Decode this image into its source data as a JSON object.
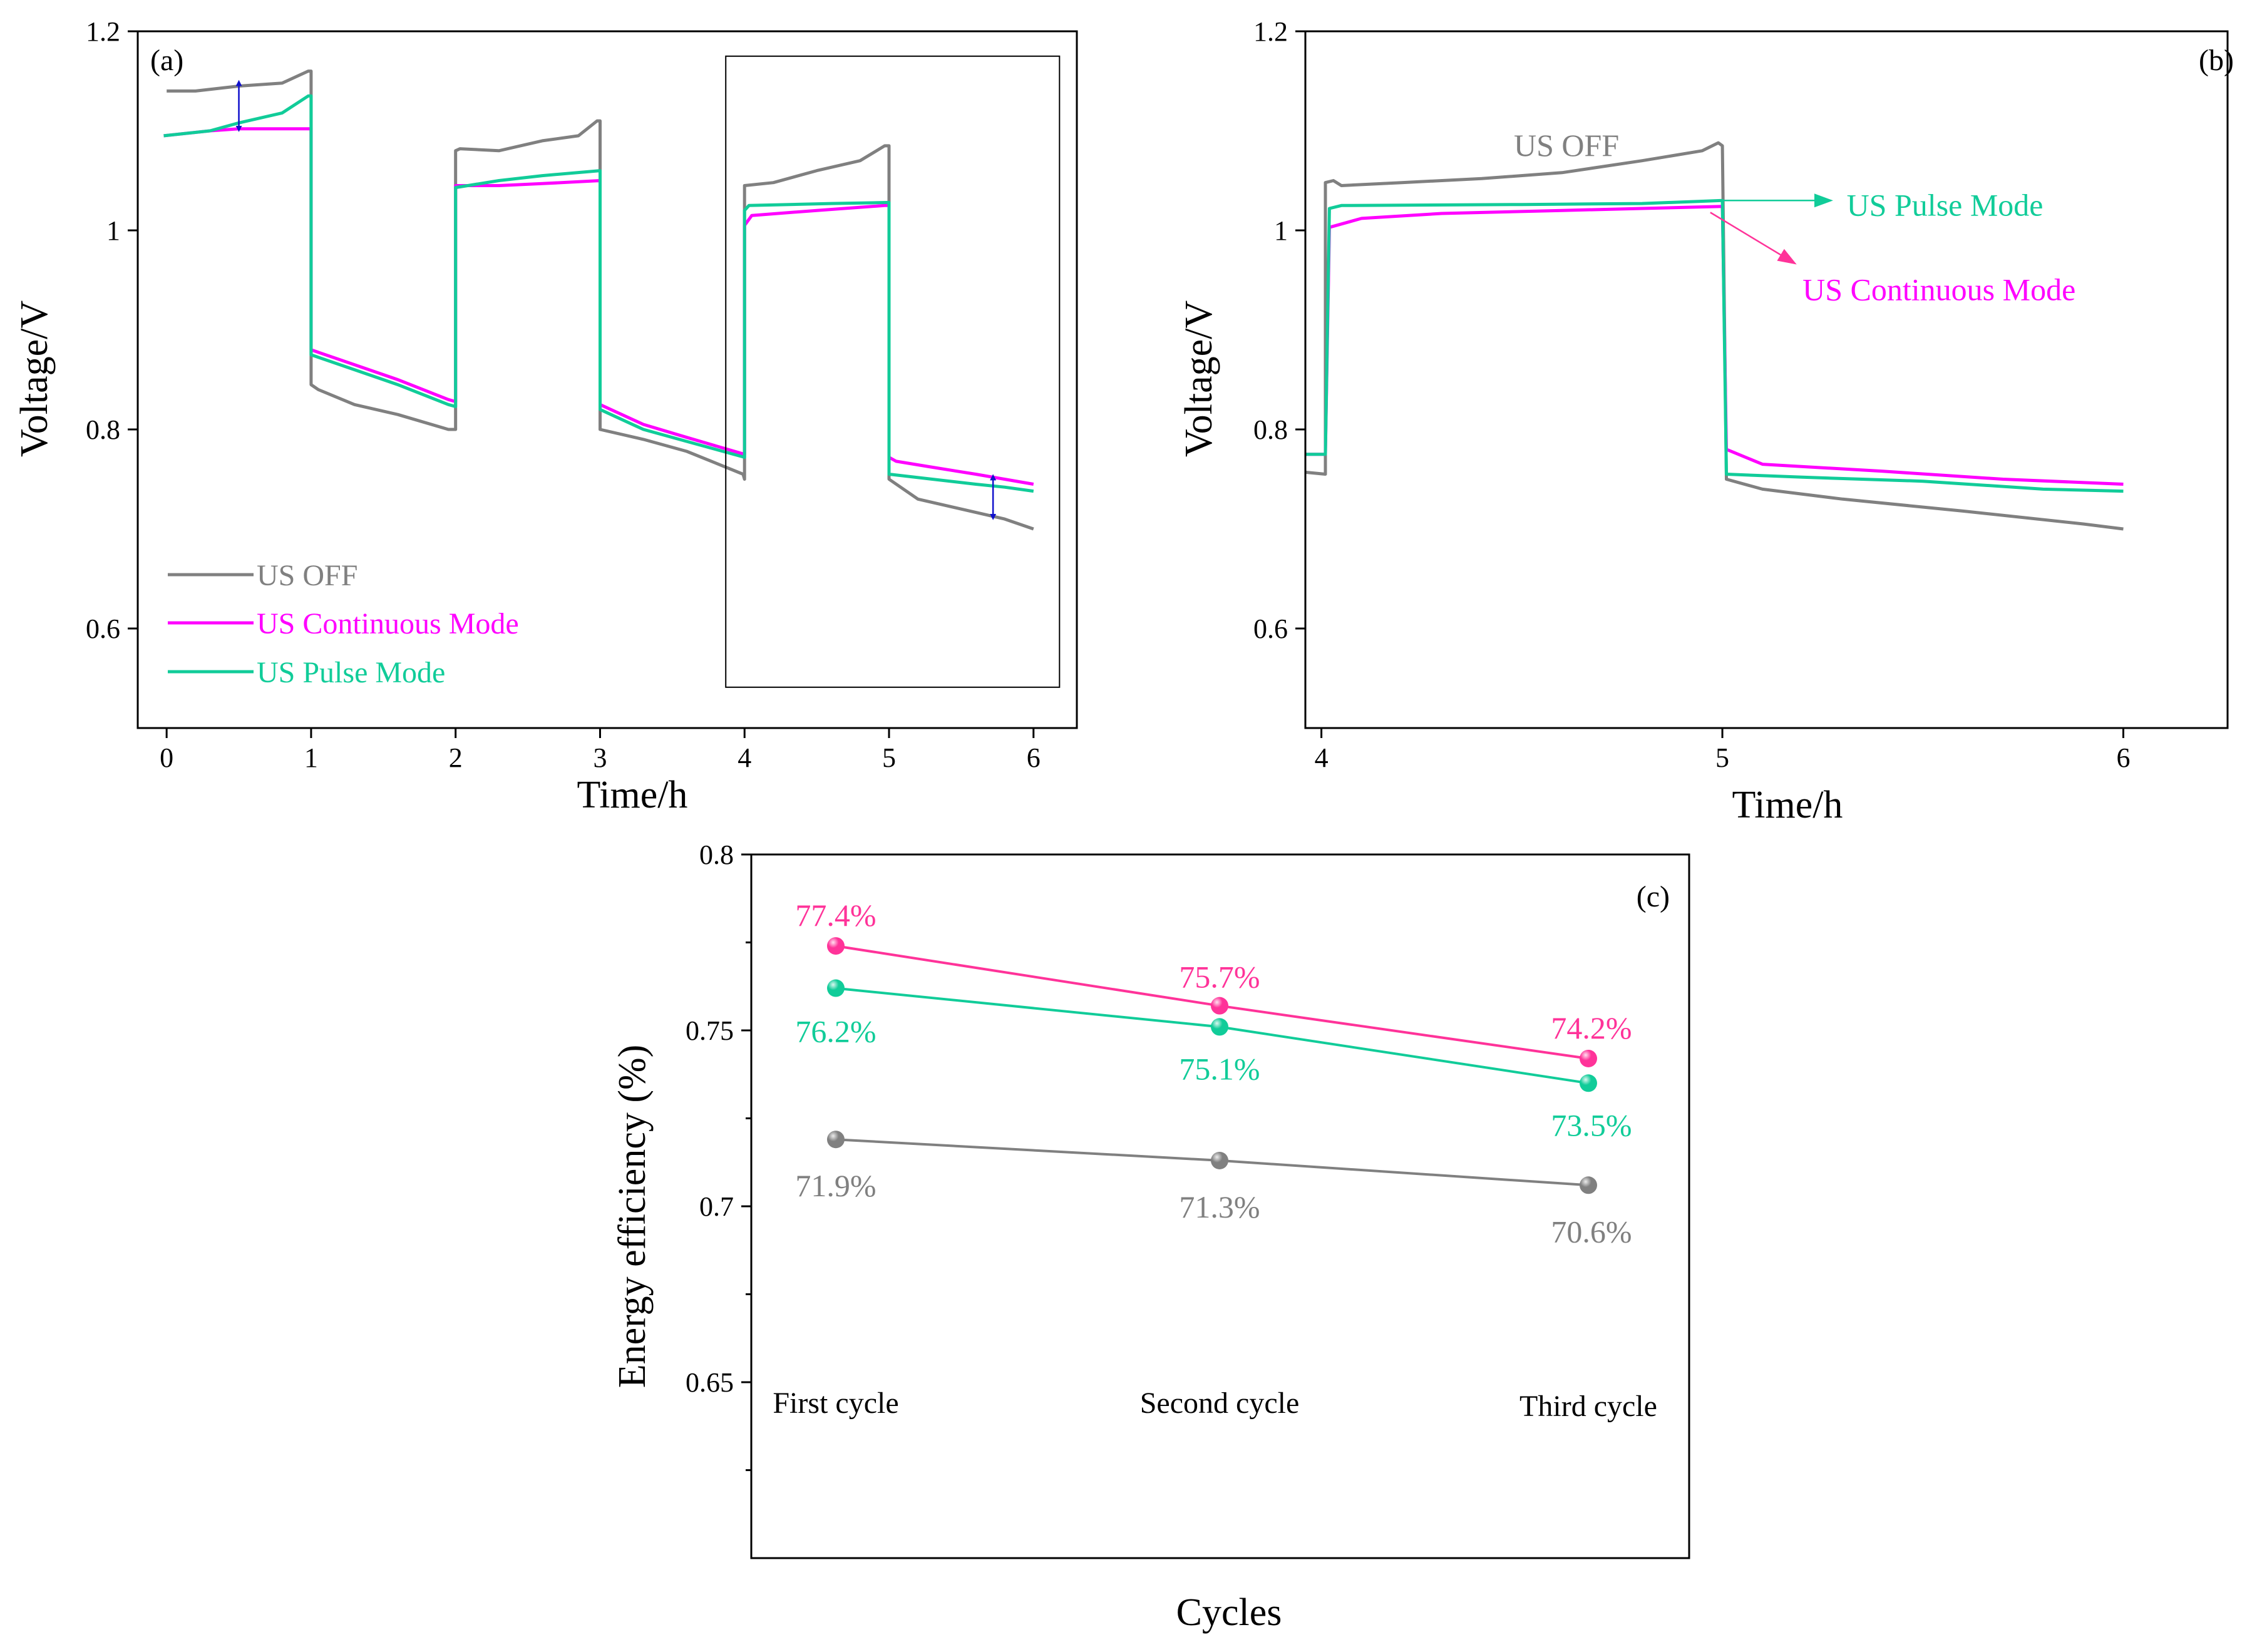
{
  "colors": {
    "us_off": "#808080",
    "continuous": "#ff00ff",
    "pulse": "#11cc99",
    "continuous_c": "#ff3399",
    "arrow": "#1010cc",
    "axis": "#000000"
  },
  "chart_data": [
    {
      "id": "a",
      "panel_label": "(a)",
      "type": "line",
      "xlabel": "Time/h",
      "ylabel": "Voltage/V",
      "xlim": [
        -0.2,
        6.3
      ],
      "ylim": [
        0.5,
        1.2
      ],
      "xticks": [
        0,
        1,
        2,
        3,
        4,
        5,
        6
      ],
      "yticks": [
        0.6,
        0.8,
        1,
        1.2
      ],
      "tick_labels_x": [
        "0",
        "1",
        "2",
        "3",
        "4",
        "5",
        "6"
      ],
      "tick_labels_y": [
        "0.6",
        "0.8",
        "1",
        "1.2"
      ],
      "legend": {
        "position": "bottom-left",
        "entries": [
          "US OFF",
          "US Continuous Mode",
          "US Pulse Mode"
        ]
      },
      "highlight_box": {
        "x": [
          3.87,
          6.18
        ],
        "y": [
          0.541,
          1.175
        ]
      },
      "series": [
        {
          "name": "US OFF",
          "color_key": "us_off",
          "points": [
            [
              0,
              1.14
            ],
            [
              0.2,
              1.14
            ],
            [
              0.5,
              1.145
            ],
            [
              0.8,
              1.148
            ],
            [
              0.98,
              1.16
            ],
            [
              1.0,
              1.16
            ],
            [
              1.0,
              0.845
            ],
            [
              1.05,
              0.84
            ],
            [
              1.3,
              0.825
            ],
            [
              1.6,
              0.815
            ],
            [
              1.95,
              0.8
            ],
            [
              2.0,
              0.8
            ],
            [
              2.0,
              1.08
            ],
            [
              2.03,
              1.082
            ],
            [
              2.3,
              1.08
            ],
            [
              2.6,
              1.09
            ],
            [
              2.85,
              1.095
            ],
            [
              2.98,
              1.11
            ],
            [
              3.0,
              1.11
            ],
            [
              3.0,
              0.8
            ],
            [
              3.3,
              0.79
            ],
            [
              3.6,
              0.778
            ],
            [
              3.99,
              0.755
            ],
            [
              4.0,
              0.75
            ],
            [
              4.0,
              1.045
            ],
            [
              4.2,
              1.048
            ],
            [
              4.5,
              1.06
            ],
            [
              4.8,
              1.07
            ],
            [
              4.97,
              1.085
            ],
            [
              5.0,
              1.085
            ],
            [
              5.0,
              0.75
            ],
            [
              5.2,
              0.73
            ],
            [
              5.5,
              0.72
            ],
            [
              5.8,
              0.71
            ],
            [
              6.0,
              0.7
            ]
          ]
        },
        {
          "name": "US Continuous Mode",
          "color_key": "continuous",
          "points": [
            [
              -0.02,
              1.095
            ],
            [
              0.3,
              1.1
            ],
            [
              0.5,
              1.102
            ],
            [
              0.98,
              1.102
            ],
            [
              1.0,
              1.102
            ],
            [
              1.0,
              0.88
            ],
            [
              1.3,
              0.865
            ],
            [
              1.6,
              0.85
            ],
            [
              1.95,
              0.83
            ],
            [
              2.0,
              0.828
            ],
            [
              2.0,
              1.045
            ],
            [
              2.3,
              1.045
            ],
            [
              2.6,
              1.047
            ],
            [
              3.0,
              1.05
            ],
            [
              3.0,
              0.825
            ],
            [
              3.3,
              0.805
            ],
            [
              3.6,
              0.792
            ],
            [
              4.0,
              0.775
            ],
            [
              4.0,
              1.005
            ],
            [
              4.05,
              1.015
            ],
            [
              4.5,
              1.02
            ],
            [
              4.97,
              1.025
            ],
            [
              5.0,
              1.025
            ],
            [
              5.0,
              0.772
            ],
            [
              5.05,
              0.768
            ],
            [
              5.3,
              0.762
            ],
            [
              5.6,
              0.755
            ],
            [
              5.8,
              0.75
            ],
            [
              6.0,
              0.745
            ]
          ]
        },
        {
          "name": "US Pulse Mode",
          "color_key": "pulse",
          "points": [
            [
              -0.02,
              1.095
            ],
            [
              0.3,
              1.1
            ],
            [
              0.5,
              1.108
            ],
            [
              0.8,
              1.118
            ],
            [
              0.98,
              1.135
            ],
            [
              1.0,
              1.135
            ],
            [
              1.0,
              0.875
            ],
            [
              1.3,
              0.86
            ],
            [
              1.6,
              0.845
            ],
            [
              1.95,
              0.825
            ],
            [
              2.0,
              0.823
            ],
            [
              2.0,
              1.043
            ],
            [
              2.3,
              1.05
            ],
            [
              2.6,
              1.055
            ],
            [
              3.0,
              1.06
            ],
            [
              3.0,
              0.82
            ],
            [
              3.3,
              0.8
            ],
            [
              3.6,
              0.788
            ],
            [
              4.0,
              0.772
            ],
            [
              4.0,
              1.02
            ],
            [
              4.03,
              1.025
            ],
            [
              4.6,
              1.027
            ],
            [
              4.98,
              1.028
            ],
            [
              5.0,
              1.028
            ],
            [
              5.0,
              0.755
            ],
            [
              5.3,
              0.75
            ],
            [
              5.6,
              0.745
            ],
            [
              5.8,
              0.742
            ],
            [
              6.0,
              0.738
            ]
          ]
        }
      ],
      "arrows": [
        {
          "x": 0.5,
          "y": [
            1.102,
            1.148
          ]
        },
        {
          "x": 5.72,
          "y": [
            0.712,
            0.752
          ]
        }
      ]
    },
    {
      "id": "b",
      "panel_label": "(b)",
      "type": "line",
      "xlabel": "Time/h",
      "ylabel": "Voltage/V",
      "xlim": [
        3.96,
        6.26
      ],
      "ylim": [
        0.5,
        1.2
      ],
      "xticks": [
        4,
        5,
        6
      ],
      "yticks": [
        0.6,
        0.8,
        1,
        1.2
      ],
      "tick_labels_x": [
        "4",
        "5",
        "6"
      ],
      "tick_labels_y": [
        "0.6",
        "0.8",
        "1",
        "1.2"
      ],
      "annotations": [
        {
          "text": "US OFF",
          "color_key": "us_off",
          "x": 4.48,
          "y": 1.085
        },
        {
          "text": "US Pulse Mode",
          "color_key": "pulse",
          "x": 5.31,
          "y": 1.025,
          "arrow_from": [
            5.0,
            1.03
          ],
          "arrow_to": [
            5.27,
            1.03
          ]
        },
        {
          "text": "US Continuous Mode",
          "color_key": "continuous",
          "x": 5.2,
          "y": 0.94,
          "arrow_from": [
            4.97,
            1.018
          ],
          "arrow_to": [
            5.18,
            0.967
          ]
        }
      ],
      "series": [
        {
          "name": "US OFF",
          "color_key": "us_off",
          "points": [
            [
              3.96,
              0.757
            ],
            [
              4.01,
              0.755
            ],
            [
              4.01,
              1.048
            ],
            [
              4.03,
              1.05
            ],
            [
              4.05,
              1.045
            ],
            [
              4.2,
              1.048
            ],
            [
              4.4,
              1.052
            ],
            [
              4.6,
              1.058
            ],
            [
              4.8,
              1.07
            ],
            [
              4.95,
              1.08
            ],
            [
              4.99,
              1.088
            ],
            [
              5.0,
              1.085
            ],
            [
              5.01,
              0.75
            ],
            [
              5.1,
              0.74
            ],
            [
              5.3,
              0.73
            ],
            [
              5.6,
              0.718
            ],
            [
              5.9,
              0.705
            ],
            [
              6.0,
              0.7
            ]
          ]
        },
        {
          "name": "US Continuous Mode",
          "color_key": "continuous",
          "points": [
            [
              3.96,
              0.775
            ],
            [
              4.01,
              0.775
            ],
            [
              4.02,
              1.003
            ],
            [
              4.1,
              1.012
            ],
            [
              4.3,
              1.017
            ],
            [
              4.6,
              1.02
            ],
            [
              4.8,
              1.022
            ],
            [
              5.0,
              1.024
            ],
            [
              5.01,
              0.78
            ],
            [
              5.1,
              0.765
            ],
            [
              5.4,
              0.758
            ],
            [
              5.7,
              0.75
            ],
            [
              6.0,
              0.745
            ]
          ]
        },
        {
          "name": "US Pulse Mode",
          "color_key": "pulse",
          "points": [
            [
              3.96,
              0.775
            ],
            [
              4.01,
              0.775
            ],
            [
              4.02,
              1.022
            ],
            [
              4.05,
              1.025
            ],
            [
              4.5,
              1.026
            ],
            [
              4.8,
              1.027
            ],
            [
              5.0,
              1.03
            ],
            [
              5.01,
              0.755
            ],
            [
              5.2,
              0.752
            ],
            [
              5.5,
              0.748
            ],
            [
              5.8,
              0.74
            ],
            [
              6.0,
              0.738
            ]
          ]
        }
      ]
    },
    {
      "id": "c",
      "panel_label": "(c)",
      "type": "line",
      "xlabel": "Cycles",
      "ylabel": "Energy efficiency (%)",
      "categories": [
        "First cycle",
        "Second cycle",
        "Third cycle"
      ],
      "ylim": [
        0.6,
        0.8
      ],
      "yticks": [
        0.65,
        0.7,
        0.75,
        0.8
      ],
      "tick_labels_y": [
        "0.65",
        "0.7",
        "0.75",
        "0.8"
      ],
      "series": [
        {
          "name": "US Continuous Mode",
          "color_key": "continuous_c",
          "values": [
            0.774,
            0.757,
            0.742
          ],
          "labels": [
            "77.4%",
            "75.7%",
            "74.2%"
          ]
        },
        {
          "name": "US Pulse Mode",
          "color_key": "pulse",
          "values": [
            0.762,
            0.751,
            0.735
          ],
          "labels": [
            "76.2%",
            "75.1%",
            "73.5%"
          ]
        },
        {
          "name": "US OFF",
          "color_key": "us_off",
          "values": [
            0.719,
            0.713,
            0.706
          ],
          "labels": [
            "71.9%",
            "71.3%",
            "70.6%"
          ]
        }
      ]
    }
  ]
}
